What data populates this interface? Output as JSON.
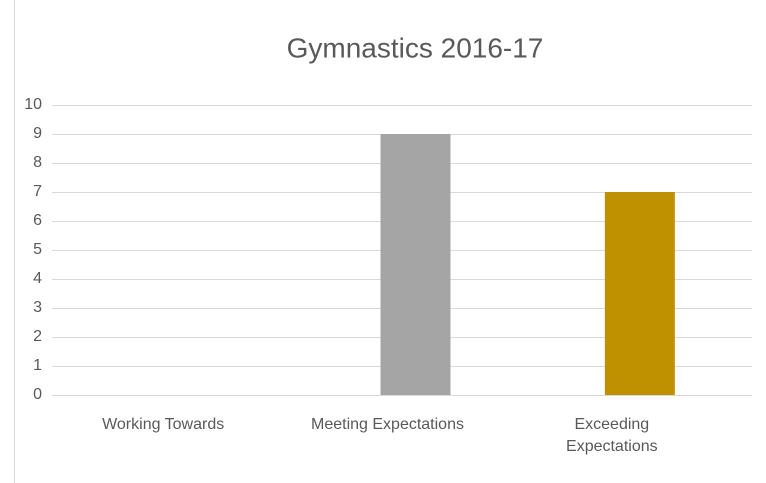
{
  "chart_data": {
    "type": "bar",
    "title": "Gymnastics 2016-17",
    "categories": [
      "Working Towards",
      "Meeting Expectations",
      "Exceeding Expectations"
    ],
    "values": [
      0,
      9,
      7
    ],
    "colors": [
      "#4472c4",
      "#a5a5a5",
      "#bf9000"
    ],
    "ylim": [
      0,
      10
    ],
    "yticks": [
      0,
      1,
      2,
      3,
      4,
      5,
      6,
      7,
      8,
      9,
      10
    ],
    "grid": true
  }
}
